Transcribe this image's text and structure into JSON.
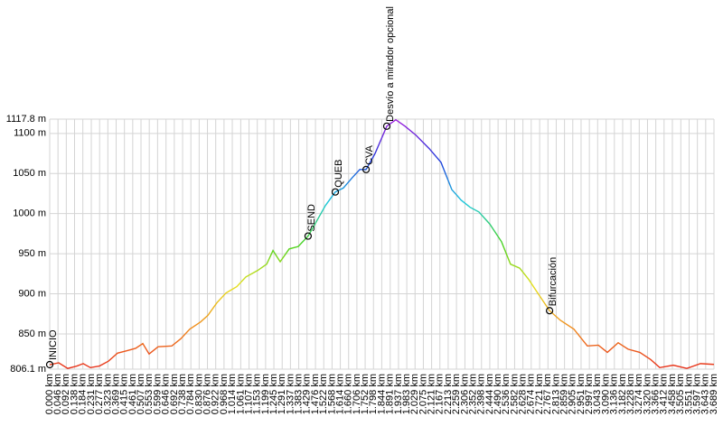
{
  "chart_data": {
    "type": "line",
    "x": [
      0,
      0.05,
      0.1,
      0.151,
      0.186,
      0.226,
      0.276,
      0.326,
      0.376,
      0.427,
      0.477,
      0.517,
      0.552,
      0.602,
      0.678,
      0.728,
      0.778,
      0.838,
      0.878,
      0.929,
      0.979,
      1.039,
      1.089,
      1.154,
      1.205,
      1.24,
      1.28,
      1.33,
      1.38,
      1.435,
      1.481,
      1.531,
      1.586,
      1.631,
      1.681,
      1.722,
      1.757,
      1.807,
      1.872,
      1.922,
      1.973,
      2.033,
      2.108,
      2.173,
      2.233,
      2.284,
      2.334,
      2.384,
      2.444,
      2.509,
      2.559,
      2.61,
      2.66,
      2.71,
      2.776,
      2.836,
      2.911,
      2.986,
      3.047,
      3.097,
      3.157,
      3.212,
      3.277,
      3.338,
      3.388,
      3.463,
      3.538,
      3.614,
      3.689
    ],
    "series": [
      {
        "values": [
          811.7,
          814,
          807,
          810,
          813,
          808,
          810,
          816,
          826,
          829,
          832,
          838,
          825,
          834,
          835,
          844,
          856,
          865,
          873,
          889,
          901,
          909,
          921,
          929,
          937,
          954,
          940,
          956,
          959,
          972,
          990,
          1010,
          1027,
          1032,
          1045,
          1055,
          1055,
          1075,
          1109,
          1117,
          1109,
          1098,
          1081,
          1064,
          1030,
          1017,
          1008,
          1002,
          987,
          965,
          937,
          932,
          918,
          901,
          879,
          867,
          856,
          835,
          836,
          827,
          839,
          831,
          827,
          818,
          808,
          811,
          807,
          813,
          812
        ]
      }
    ],
    "colors": [
      "#e8301c",
      "#f08c1e",
      "#e6e01e",
      "#46d21e",
      "#1ec8dc",
      "#1e3cdc",
      "#a01edc"
    ],
    "waypoints": [
      {
        "name": "INICIO",
        "x": 0,
        "y": 811.7
      },
      {
        "name": "SEND",
        "x": 1.435,
        "y": 972
      },
      {
        "name": "QUEB",
        "x": 1.586,
        "y": 1027
      },
      {
        "name": "CVA",
        "x": 1.757,
        "y": 1055
      },
      {
        "name": "Desvío a mirador opcional",
        "x": 1.872,
        "y": 1109
      },
      {
        "name": "Bifurcación",
        "x": 2.776,
        "y": 879
      }
    ],
    "xlim": [
      0,
      3.689
    ],
    "ylim": [
      806.1,
      1117.8
    ],
    "grid": true,
    "yticks": [
      {
        "value": 806.1,
        "label": "806.1 m"
      },
      {
        "value": 850,
        "label": "850 m"
      },
      {
        "value": 900,
        "label": "900 m"
      },
      {
        "value": 950,
        "label": "950 m"
      },
      {
        "value": 1000,
        "label": "1000 m"
      },
      {
        "value": 1050,
        "label": "1050 m"
      },
      {
        "value": 1100,
        "label": "1100 m"
      },
      {
        "value": 1117.8,
        "label": "1117.8 m"
      }
    ],
    "xticks": [
      {
        "value": 0,
        "label": "0.000 km"
      },
      {
        "value": 0.046,
        "label": "0.046 km"
      },
      {
        "value": 0.092,
        "label": "0.092 km"
      },
      {
        "value": 0.138,
        "label": "0.138 km"
      },
      {
        "value": 0.184,
        "label": "0.184 km"
      },
      {
        "value": 0.231,
        "label": "0.231 km"
      },
      {
        "value": 0.277,
        "label": "0.277 km"
      },
      {
        "value": 0.323,
        "label": "0.323 km"
      },
      {
        "value": 0.369,
        "label": "0.369 km"
      },
      {
        "value": 0.415,
        "label": "0.415 km"
      },
      {
        "value": 0.461,
        "label": "0.461 km"
      },
      {
        "value": 0.507,
        "label": "0.507 km"
      },
      {
        "value": 0.553,
        "label": "0.553 km"
      },
      {
        "value": 0.599,
        "label": "0.599 km"
      },
      {
        "value": 0.646,
        "label": "0.646 km"
      },
      {
        "value": 0.692,
        "label": "0.692 km"
      },
      {
        "value": 0.738,
        "label": "0.738 km"
      },
      {
        "value": 0.784,
        "label": "0.784 km"
      },
      {
        "value": 0.83,
        "label": "0.830 km"
      },
      {
        "value": 0.876,
        "label": "0.876 km"
      },
      {
        "value": 0.922,
        "label": "0.922 km"
      },
      {
        "value": 0.968,
        "label": "0.968 km"
      },
      {
        "value": 1.014,
        "label": "1.014 km"
      },
      {
        "value": 1.061,
        "label": "1.061 km"
      },
      {
        "value": 1.107,
        "label": "1.107 km"
      },
      {
        "value": 1.153,
        "label": "1.153 km"
      },
      {
        "value": 1.199,
        "label": "1.199 km"
      },
      {
        "value": 1.245,
        "label": "1.245 km"
      },
      {
        "value": 1.291,
        "label": "1.291 km"
      },
      {
        "value": 1.337,
        "label": "1.337 km"
      },
      {
        "value": 1.383,
        "label": "1.383 km"
      },
      {
        "value": 1.429,
        "label": "1.429 km"
      },
      {
        "value": 1.476,
        "label": "1.476 km"
      },
      {
        "value": 1.522,
        "label": "1.522 km"
      },
      {
        "value": 1.568,
        "label": "1.568 km"
      },
      {
        "value": 1.614,
        "label": "1.614 km"
      },
      {
        "value": 1.66,
        "label": "1.660 km"
      },
      {
        "value": 1.706,
        "label": "1.706 km"
      },
      {
        "value": 1.752,
        "label": "1.752 km"
      },
      {
        "value": 1.798,
        "label": "1.798 km"
      },
      {
        "value": 1.844,
        "label": "1.844 km"
      },
      {
        "value": 1.891,
        "label": "1.891 km"
      },
      {
        "value": 1.937,
        "label": "1.937 km"
      },
      {
        "value": 1.983,
        "label": "1.983 km"
      },
      {
        "value": 2.029,
        "label": "2.029 km"
      },
      {
        "value": 2.075,
        "label": "2.075 km"
      },
      {
        "value": 2.121,
        "label": "2.121 km"
      },
      {
        "value": 2.167,
        "label": "2.167 km"
      },
      {
        "value": 2.213,
        "label": "2.213 km"
      },
      {
        "value": 2.259,
        "label": "2.259 km"
      },
      {
        "value": 2.306,
        "label": "2.306 km"
      },
      {
        "value": 2.352,
        "label": "2.352 km"
      },
      {
        "value": 2.398,
        "label": "2.398 km"
      },
      {
        "value": 2.444,
        "label": "2.444 km"
      },
      {
        "value": 2.49,
        "label": "2.490 km"
      },
      {
        "value": 2.536,
        "label": "2.536 km"
      },
      {
        "value": 2.582,
        "label": "2.582 km"
      },
      {
        "value": 2.628,
        "label": "2.628 km"
      },
      {
        "value": 2.674,
        "label": "2.674 km"
      },
      {
        "value": 2.721,
        "label": "2.721 km"
      },
      {
        "value": 2.767,
        "label": "2.767 km"
      },
      {
        "value": 2.813,
        "label": "2.813 km"
      },
      {
        "value": 2.859,
        "label": "2.859 km"
      },
      {
        "value": 2.905,
        "label": "2.905 km"
      },
      {
        "value": 2.951,
        "label": "2.951 km"
      },
      {
        "value": 2.997,
        "label": "2.997 km"
      },
      {
        "value": 3.043,
        "label": "3.043 km"
      },
      {
        "value": 3.09,
        "label": "3.090 km"
      },
      {
        "value": 3.136,
        "label": "3.136 km"
      },
      {
        "value": 3.182,
        "label": "3.182 km"
      },
      {
        "value": 3.228,
        "label": "3.228 km"
      },
      {
        "value": 3.274,
        "label": "3.274 km"
      },
      {
        "value": 3.32,
        "label": "3.320 km"
      },
      {
        "value": 3.366,
        "label": "3.366 km"
      },
      {
        "value": 3.412,
        "label": "3.412 km"
      },
      {
        "value": 3.458,
        "label": "3.458 km"
      },
      {
        "value": 3.505,
        "label": "3.505 km"
      },
      {
        "value": 3.551,
        "label": "3.551 km"
      },
      {
        "value": 3.597,
        "label": "3.597 km"
      },
      {
        "value": 3.643,
        "label": "3.643 km"
      },
      {
        "value": 3.689,
        "label": "3.689 km"
      }
    ]
  }
}
